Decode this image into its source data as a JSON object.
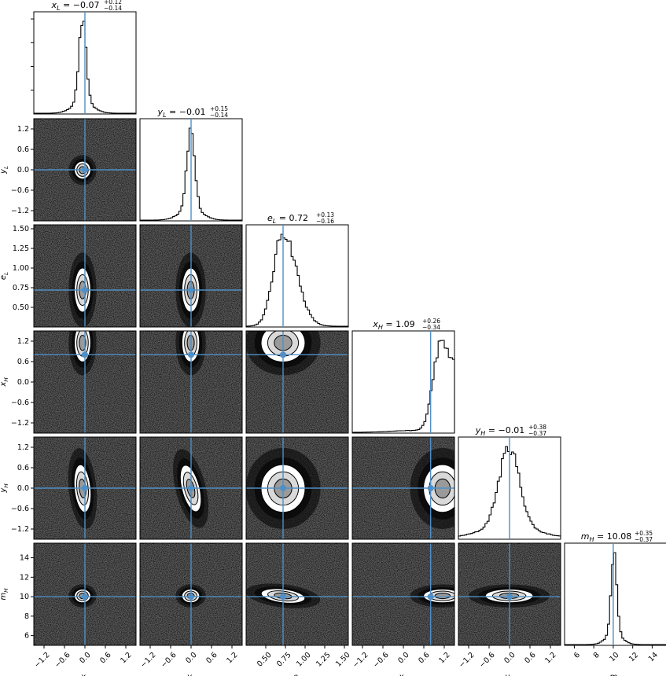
{
  "chart_data": {
    "type": "corner",
    "parameters": [
      {
        "key": "xL",
        "sym": "x",
        "sub": "L",
        "median": -0.07,
        "plus": 0.12,
        "minus": 0.14,
        "truth": 0.0,
        "range": [
          -1.5,
          1.5
        ],
        "ticks": [
          -1.2,
          -0.6,
          0.0,
          0.6,
          1.2
        ],
        "tick_labels": [
          "−1.2",
          "−0.6",
          "0.0",
          "0.6",
          "1.2"
        ]
      },
      {
        "key": "yL",
        "sym": "y",
        "sub": "L",
        "median": -0.01,
        "plus": 0.15,
        "minus": 0.14,
        "truth": 0.0,
        "range": [
          -1.5,
          1.5
        ],
        "ticks": [
          -1.2,
          -0.6,
          0.0,
          0.6,
          1.2
        ],
        "tick_labels": [
          "−1.2",
          "−0.6",
          "0.0",
          "0.6",
          "1.2"
        ]
      },
      {
        "key": "eL",
        "sym": "e",
        "sub": "L",
        "median": 0.72,
        "plus": 0.13,
        "minus": 0.16,
        "truth": 0.72,
        "range": [
          0.25,
          1.55
        ],
        "ticks": [
          0.5,
          0.75,
          1.0,
          1.25,
          1.5
        ],
        "tick_labels": [
          "0.50",
          "0.75",
          "1.00",
          "1.25",
          "1.50"
        ]
      },
      {
        "key": "xH",
        "sym": "x",
        "sub": "H",
        "median": 1.09,
        "plus": 0.26,
        "minus": 0.34,
        "truth": 0.8,
        "range": [
          -1.5,
          1.5
        ],
        "ticks": [
          -1.2,
          -0.6,
          0.0,
          0.6,
          1.2
        ],
        "tick_labels": [
          "−1.2",
          "−0.6",
          "0.0",
          "0.6",
          "1.2"
        ]
      },
      {
        "key": "yH",
        "sym": "y",
        "sub": "H",
        "median": -0.01,
        "plus": 0.38,
        "minus": 0.37,
        "truth": 0.0,
        "range": [
          -1.5,
          1.5
        ],
        "ticks": [
          -1.2,
          -0.6,
          0.0,
          0.6,
          1.2
        ],
        "tick_labels": [
          "−1.2",
          "−0.6",
          "0.0",
          "0.6",
          "1.2"
        ]
      },
      {
        "key": "mH",
        "sym": "m",
        "sub": "H",
        "median": 10.08,
        "plus": 0.35,
        "minus": 0.37,
        "truth": 10.0,
        "range": [
          5.0,
          15.5
        ],
        "ticks": [
          6,
          8,
          10,
          12,
          14
        ],
        "tick_labels": [
          "6",
          "8",
          "10",
          "12",
          "14"
        ]
      }
    ],
    "truth_line_color": "#4f8fc5",
    "contour_levels": 3,
    "grid": false,
    "legend": "none"
  }
}
